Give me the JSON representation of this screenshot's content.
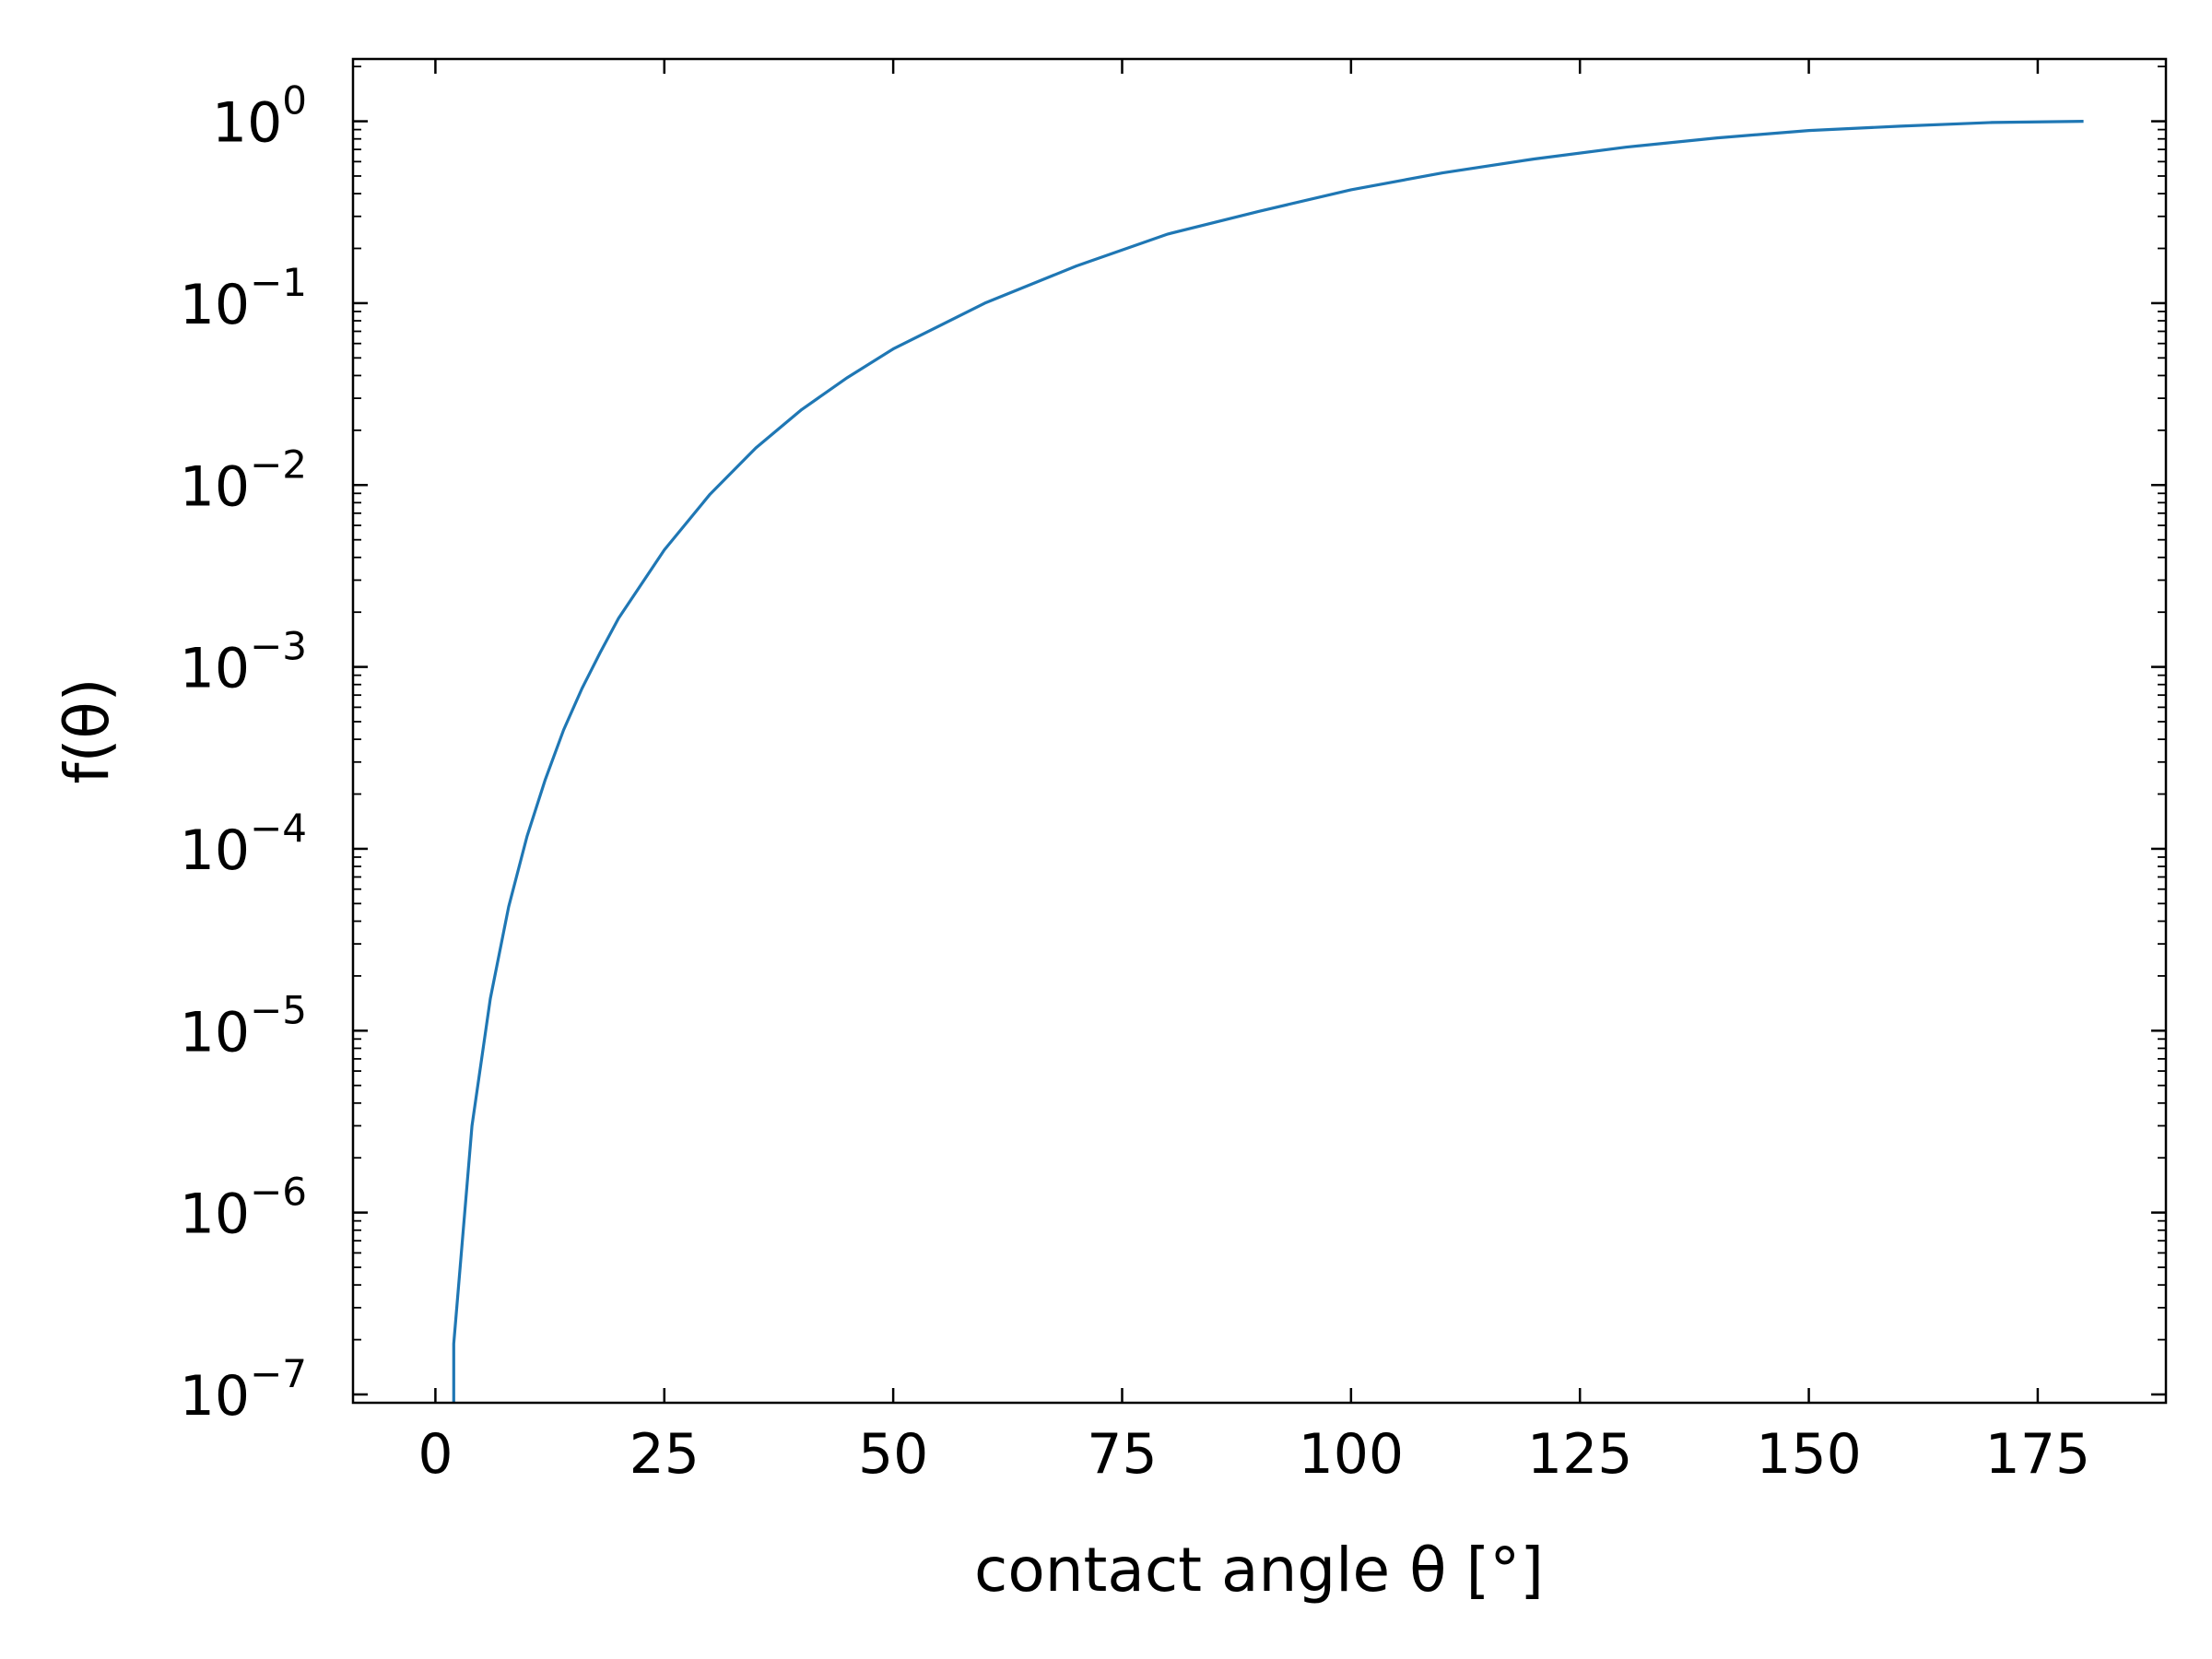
{
  "chart_data": {
    "type": "line",
    "xlabel": "contact angle θ [°]",
    "ylabel": "f(θ)",
    "x_scale": "linear",
    "y_scale": "log",
    "xlim": [
      -9,
      189
    ],
    "ylim": [
      9e-08,
      2.2
    ],
    "x_ticks": [
      0,
      25,
      50,
      75,
      100,
      125,
      150,
      175
    ],
    "x_tick_labels": [
      "0",
      "25",
      "50",
      "75",
      "100",
      "125",
      "150",
      "175"
    ],
    "y_ticks": [
      1e-07,
      1e-06,
      1e-05,
      0.0001,
      0.001,
      0.01,
      0.1,
      1
    ],
    "y_tick_labels": [
      {
        "base": "10",
        "exp": "−7"
      },
      {
        "base": "10",
        "exp": "−6"
      },
      {
        "base": "10",
        "exp": "−5"
      },
      {
        "base": "10",
        "exp": "−4"
      },
      {
        "base": "10",
        "exp": "−3"
      },
      {
        "base": "10",
        "exp": "−2"
      },
      {
        "base": "10",
        "exp": "−1"
      },
      {
        "base": "10",
        "exp": "0"
      }
    ],
    "grid": false,
    "colors": {
      "series": "#1f77b4",
      "axes": "#000000",
      "background": "#ffffff"
    },
    "series": [
      {
        "x": [
          2,
          2,
          4,
          6,
          8,
          10,
          12,
          14,
          16,
          18,
          20,
          25,
          30,
          35,
          40,
          45,
          50,
          60,
          70,
          80,
          90,
          100,
          110,
          120,
          130,
          140,
          150,
          160,
          170,
          180
        ],
        "y": [
          9e-08,
          1.9e-07,
          3e-06,
          1.5e-05,
          4.8e-05,
          0.000117,
          0.00024,
          0.00045,
          0.00076,
          0.0012,
          0.00185,
          0.0044,
          0.0089,
          0.016,
          0.026,
          0.039,
          0.056,
          0.1,
          0.16,
          0.24,
          0.32,
          0.42,
          0.52,
          0.62,
          0.72,
          0.81,
          0.89,
          0.94,
          0.985,
          1.0
        ]
      }
    ]
  }
}
